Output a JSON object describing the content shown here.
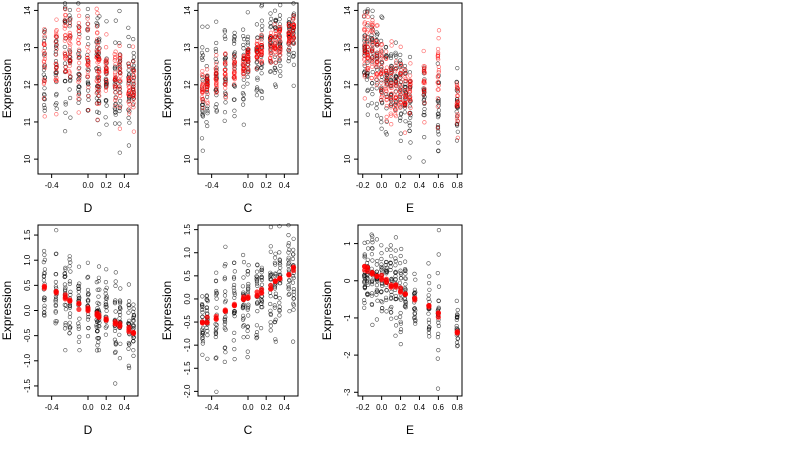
{
  "figure": {
    "background": "#ffffff",
    "point_color": "#000000",
    "highlight_color": "#ff0000"
  },
  "chart_data": [
    {
      "type": "scatter",
      "panel": "top-left",
      "xlabel": "D",
      "ylabel": "Expression",
      "xlim": [
        -0.55,
        0.55
      ],
      "ylim": [
        9.6,
        14.2
      ],
      "xticks": [
        -0.4,
        0.0,
        0.2,
        0.4
      ],
      "xtick_labels": [
        "-0.4",
        "0.0",
        "0.2",
        "0.4"
      ],
      "yticks": [
        10,
        11,
        12,
        13,
        14
      ],
      "ytick_labels": [
        "10",
        "11",
        "12",
        "13",
        "14"
      ],
      "x_groups": [
        -0.48,
        -0.35,
        -0.25,
        -0.2,
        -0.1,
        0.0,
        0.1,
        0.12,
        0.2,
        0.3,
        0.35,
        0.45,
        0.5
      ],
      "series": [
        {
          "style": "black-open-circles",
          "center": [
            12.5,
            12.6,
            12.8,
            12.7,
            12.6,
            12.3,
            12.6,
            12.4,
            12.2,
            12.0,
            12.0,
            11.9,
            12.1
          ],
          "spread": [
            0.75,
            0.7,
            0.85,
            0.7,
            0.75,
            0.8,
            0.7,
            0.75,
            0.7,
            0.6,
            0.75,
            0.6,
            0.5
          ]
        },
        {
          "style": "red-open-circles",
          "center": [
            12.6,
            12.8,
            13.0,
            12.9,
            12.7,
            12.5,
            12.6,
            12.4,
            12.4,
            12.2,
            12.1,
            11.9,
            11.8
          ],
          "spread": [
            0.6,
            0.55,
            0.6,
            0.55,
            0.6,
            0.55,
            0.6,
            0.5,
            0.5,
            0.5,
            0.45,
            0.45,
            0.4
          ]
        }
      ]
    },
    {
      "type": "scatter",
      "panel": "top-middle",
      "xlabel": "C",
      "ylabel": "Expression",
      "xlim": [
        -0.55,
        0.55
      ],
      "ylim": [
        9.6,
        14.2
      ],
      "xticks": [
        -0.4,
        0.0,
        0.2,
        0.4
      ],
      "xtick_labels": [
        "-0.4",
        "0.0",
        "0.2",
        "0.4"
      ],
      "yticks": [
        10,
        11,
        12,
        13,
        14
      ],
      "ytick_labels": [
        "10",
        "11",
        "12",
        "13",
        "14"
      ],
      "x_groups": [
        -0.5,
        -0.45,
        -0.35,
        -0.25,
        -0.15,
        -0.05,
        0.0,
        0.1,
        0.15,
        0.25,
        0.3,
        0.35,
        0.45,
        0.5
      ],
      "series": [
        {
          "style": "black-open-circles",
          "center": [
            11.9,
            12.0,
            12.2,
            12.3,
            12.4,
            12.5,
            12.6,
            12.8,
            12.9,
            13.0,
            13.1,
            13.2,
            13.3,
            13.4
          ],
          "spread": [
            0.7,
            0.65,
            0.6,
            0.7,
            0.6,
            0.65,
            0.6,
            0.55,
            0.6,
            0.6,
            0.55,
            0.55,
            0.5,
            0.5
          ]
        },
        {
          "style": "red-open-circles",
          "center": [
            11.9,
            12.0,
            12.2,
            12.3,
            12.4,
            12.5,
            12.6,
            12.8,
            12.9,
            13.0,
            13.1,
            13.2,
            13.3,
            13.4
          ],
          "spread": [
            0.25,
            0.25,
            0.25,
            0.25,
            0.2,
            0.2,
            0.2,
            0.2,
            0.2,
            0.25,
            0.25,
            0.25,
            0.2,
            0.2
          ]
        }
      ]
    },
    {
      "type": "scatter",
      "panel": "top-right",
      "xlabel": "E",
      "ylabel": "Expression",
      "xlim": [
        -0.25,
        0.85
      ],
      "ylim": [
        9.6,
        14.2
      ],
      "xticks": [
        -0.2,
        0.0,
        0.2,
        0.4,
        0.6,
        0.8
      ],
      "xtick_labels": [
        "-0.2",
        "0.0",
        "0.2",
        "0.4",
        "0.6",
        "0.8"
      ],
      "yticks": [
        10,
        11,
        12,
        13,
        14
      ],
      "ytick_labels": [
        "10",
        "11",
        "12",
        "13",
        "14"
      ],
      "x_groups": [
        -0.18,
        -0.15,
        -0.1,
        -0.05,
        0.0,
        0.05,
        0.1,
        0.15,
        0.2,
        0.25,
        0.3,
        0.45,
        0.6,
        0.8
      ],
      "series": [
        {
          "style": "black-open-circles",
          "center": [
            13.0,
            12.9,
            12.7,
            12.5,
            12.3,
            12.1,
            12.0,
            11.9,
            11.8,
            11.7,
            11.6,
            11.6,
            11.5,
            11.5
          ],
          "spread": [
            0.6,
            0.65,
            0.6,
            0.7,
            0.7,
            0.6,
            0.55,
            0.55,
            0.5,
            0.5,
            0.55,
            0.5,
            0.6,
            0.5
          ]
        },
        {
          "style": "red-open-circles",
          "center": [
            13.1,
            13.0,
            12.8,
            12.6,
            12.4,
            12.2,
            12.0,
            11.9,
            11.8,
            11.7,
            11.7,
            12.0,
            12.3,
            11.5
          ],
          "spread": [
            0.5,
            0.5,
            0.5,
            0.5,
            0.5,
            0.5,
            0.45,
            0.45,
            0.45,
            0.4,
            0.4,
            0.5,
            0.6,
            0.4
          ]
        }
      ]
    },
    {
      "type": "scatter",
      "panel": "bottom-left",
      "xlabel": "D",
      "ylabel": "Expression",
      "xlim": [
        -0.55,
        0.55
      ],
      "ylim": [
        -1.7,
        1.7
      ],
      "xticks": [
        -0.4,
        0.0,
        0.2,
        0.4
      ],
      "xtick_labels": [
        "-0.4",
        "0.0",
        "0.2",
        "0.4"
      ],
      "yticks": [
        -1.5,
        -1.0,
        -0.5,
        0.0,
        0.5,
        1.0,
        1.5
      ],
      "ytick_labels": [
        "-1.5",
        "-1.0",
        "-0.5",
        "0.0",
        "0.5",
        "1.0",
        "1.5"
      ],
      "x_groups": [
        -0.48,
        -0.35,
        -0.25,
        -0.2,
        -0.1,
        0.0,
        0.1,
        0.12,
        0.2,
        0.3,
        0.35,
        0.45,
        0.5
      ],
      "series": [
        {
          "style": "black-open-circles",
          "center": [
            0.45,
            0.35,
            0.25,
            0.2,
            0.1,
            0.0,
            -0.1,
            -0.1,
            -0.15,
            -0.25,
            -0.3,
            -0.4,
            -0.45
          ],
          "spread": [
            0.45,
            0.5,
            0.5,
            0.45,
            0.5,
            0.45,
            0.4,
            0.45,
            0.4,
            0.4,
            0.35,
            0.35,
            0.3
          ]
        },
        {
          "style": "red-filled-dots",
          "center": [
            0.48,
            0.36,
            0.26,
            0.2,
            0.1,
            0.02,
            -0.08,
            -0.1,
            -0.16,
            -0.24,
            -0.3,
            -0.38,
            -0.45
          ],
          "spread": [
            0.03,
            0.03,
            0.03,
            0.03,
            0.03,
            0.03,
            0.03,
            0.03,
            0.03,
            0.03,
            0.03,
            0.03,
            0.03
          ]
        }
      ]
    },
    {
      "type": "scatter",
      "panel": "bottom-middle",
      "xlabel": "C",
      "ylabel": "Expression",
      "xlim": [
        -0.55,
        0.55
      ],
      "ylim": [
        -2.1,
        1.6
      ],
      "xticks": [
        -0.4,
        0.0,
        0.2,
        0.4
      ],
      "xtick_labels": [
        "-0.4",
        "0.0",
        "0.2",
        "0.4"
      ],
      "yticks": [
        -2.0,
        -1.5,
        -1.0,
        -0.5,
        0.0,
        0.5,
        1.0,
        1.5
      ],
      "ytick_labels": [
        "-2.0",
        "-1.5",
        "-1.0",
        "-0.5",
        "0.0",
        "0.5",
        "1.0",
        "1.5"
      ],
      "x_groups": [
        -0.5,
        -0.45,
        -0.35,
        -0.25,
        -0.15,
        -0.05,
        0.0,
        0.1,
        0.15,
        0.25,
        0.3,
        0.35,
        0.45,
        0.5
      ],
      "series": [
        {
          "style": "black-open-circles",
          "center": [
            -0.5,
            -0.45,
            -0.35,
            -0.25,
            -0.1,
            0.0,
            0.05,
            0.1,
            0.15,
            0.3,
            0.4,
            0.5,
            0.55,
            0.6
          ],
          "spread": [
            0.5,
            0.5,
            0.5,
            0.55,
            0.5,
            0.45,
            0.5,
            0.5,
            0.45,
            0.5,
            0.5,
            0.45,
            0.5,
            0.45
          ]
        },
        {
          "style": "red-filled-dots",
          "center": [
            -0.52,
            -0.46,
            -0.37,
            -0.27,
            -0.12,
            -0.02,
            0.04,
            0.1,
            0.15,
            0.28,
            0.36,
            0.44,
            0.55,
            0.62
          ],
          "spread": [
            0.04,
            0.04,
            0.04,
            0.04,
            0.04,
            0.04,
            0.04,
            0.04,
            0.04,
            0.04,
            0.04,
            0.04,
            0.04,
            0.04
          ]
        }
      ]
    },
    {
      "type": "scatter",
      "panel": "bottom-right",
      "xlabel": "E",
      "ylabel": "Expression",
      "xlim": [
        -0.25,
        0.85
      ],
      "ylim": [
        -3.1,
        1.5
      ],
      "xticks": [
        -0.2,
        0.0,
        0.2,
        0.4,
        0.6,
        0.8
      ],
      "xtick_labels": [
        "-0.2",
        "0.0",
        "0.2",
        "0.4",
        "0.6",
        "0.8"
      ],
      "yticks": [
        -3,
        -2,
        -1,
        0,
        1
      ],
      "ytick_labels": [
        "-3",
        "-2",
        "-1",
        "0",
        "1"
      ],
      "x_groups": [
        -0.18,
        -0.15,
        -0.1,
        -0.05,
        0.0,
        0.05,
        0.1,
        0.15,
        0.2,
        0.25,
        0.35,
        0.5,
        0.6,
        0.8
      ],
      "series": [
        {
          "style": "black-open-circles",
          "center": [
            0.3,
            0.25,
            0.2,
            0.1,
            0.05,
            0.0,
            -0.1,
            -0.15,
            -0.2,
            -0.3,
            -0.45,
            -0.75,
            -1.0,
            -1.3
          ],
          "spread": [
            0.55,
            0.55,
            0.6,
            0.55,
            0.6,
            0.55,
            0.5,
            0.5,
            0.5,
            0.45,
            0.4,
            0.5,
            0.9,
            0.4
          ]
        },
        {
          "style": "red-filled-dots",
          "center": [
            0.35,
            0.28,
            0.2,
            0.12,
            0.05,
            -0.02,
            -0.1,
            -0.18,
            -0.25,
            -0.32,
            -0.5,
            -0.75,
            -0.95,
            -1.35
          ],
          "spread": [
            0.04,
            0.04,
            0.04,
            0.04,
            0.04,
            0.04,
            0.04,
            0.04,
            0.04,
            0.04,
            0.04,
            0.05,
            0.05,
            0.05
          ]
        }
      ]
    }
  ]
}
